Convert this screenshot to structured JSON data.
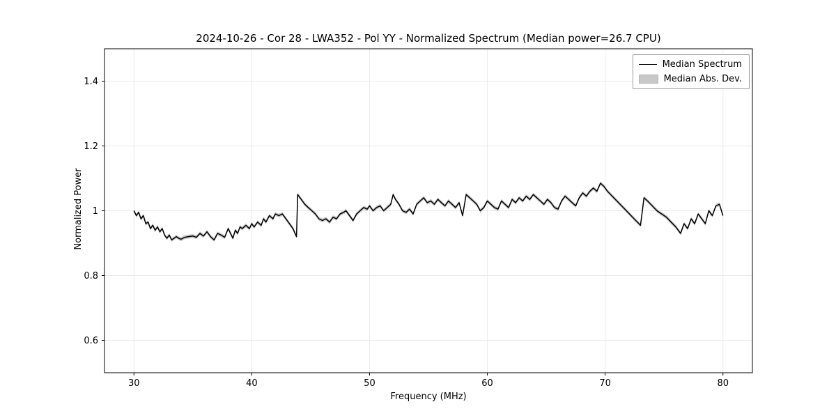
{
  "chart_data": {
    "type": "line",
    "title": "2024-10-26 - Cor 28 - LWA352 - Pol YY - Normalized Spectrum (Median power=26.7 CPU)",
    "xlabel": "Frequency (MHz)",
    "ylabel": "Normalized Power",
    "xlim": [
      27.5,
      82.5
    ],
    "ylim": [
      0.5,
      1.5
    ],
    "xticks": [
      30,
      40,
      50,
      60,
      70,
      80
    ],
    "yticks": [
      0.6,
      0.8,
      1.0,
      1.2,
      1.4
    ],
    "grid": true,
    "line_color": "#000000",
    "band_color": "#c8c8c8",
    "grid_color": "#ebebeb",
    "mad": 0.006,
    "legend": [
      {
        "label": "Median Spectrum",
        "type": "line",
        "color": "#000000"
      },
      {
        "label": "Median Abs. Dev.",
        "type": "patch",
        "color": "#c8c8c8"
      }
    ],
    "series": [
      {
        "name": "Median Spectrum",
        "points": [
          [
            30.0,
            1.0
          ],
          [
            30.2,
            0.985
          ],
          [
            30.4,
            0.995
          ],
          [
            30.6,
            0.975
          ],
          [
            30.8,
            0.985
          ],
          [
            31.0,
            0.96
          ],
          [
            31.2,
            0.965
          ],
          [
            31.4,
            0.945
          ],
          [
            31.6,
            0.955
          ],
          [
            31.8,
            0.94
          ],
          [
            32.0,
            0.95
          ],
          [
            32.2,
            0.935
          ],
          [
            32.4,
            0.945
          ],
          [
            32.6,
            0.925
          ],
          [
            32.8,
            0.915
          ],
          [
            33.0,
            0.925
          ],
          [
            33.2,
            0.91
          ],
          [
            33.4,
            0.915
          ],
          [
            33.6,
            0.92
          ],
          [
            33.8,
            0.915
          ],
          [
            34.0,
            0.912
          ],
          [
            34.3,
            0.918
          ],
          [
            34.6,
            0.92
          ],
          [
            35.0,
            0.922
          ],
          [
            35.3,
            0.918
          ],
          [
            35.6,
            0.93
          ],
          [
            35.9,
            0.922
          ],
          [
            36.2,
            0.935
          ],
          [
            36.5,
            0.92
          ],
          [
            36.8,
            0.91
          ],
          [
            37.1,
            0.93
          ],
          [
            37.4,
            0.925
          ],
          [
            37.7,
            0.918
          ],
          [
            38.0,
            0.945
          ],
          [
            38.2,
            0.93
          ],
          [
            38.4,
            0.915
          ],
          [
            38.6,
            0.94
          ],
          [
            38.8,
            0.93
          ],
          [
            39.0,
            0.95
          ],
          [
            39.2,
            0.945
          ],
          [
            39.5,
            0.955
          ],
          [
            39.8,
            0.945
          ],
          [
            40.0,
            0.96
          ],
          [
            40.2,
            0.95
          ],
          [
            40.5,
            0.965
          ],
          [
            40.8,
            0.955
          ],
          [
            41.0,
            0.975
          ],
          [
            41.2,
            0.965
          ],
          [
            41.5,
            0.985
          ],
          [
            41.8,
            0.975
          ],
          [
            42.0,
            0.99
          ],
          [
            42.3,
            0.985
          ],
          [
            42.6,
            0.99
          ],
          [
            42.9,
            0.975
          ],
          [
            43.2,
            0.96
          ],
          [
            43.5,
            0.945
          ],
          [
            43.8,
            0.92
          ],
          [
            43.9,
            1.05
          ],
          [
            44.2,
            1.035
          ],
          [
            44.5,
            1.02
          ],
          [
            44.8,
            1.01
          ],
          [
            45.1,
            1.0
          ],
          [
            45.4,
            0.99
          ],
          [
            45.7,
            0.975
          ],
          [
            46.0,
            0.97
          ],
          [
            46.3,
            0.975
          ],
          [
            46.6,
            0.965
          ],
          [
            46.9,
            0.98
          ],
          [
            47.2,
            0.975
          ],
          [
            47.5,
            0.99
          ],
          [
            47.8,
            0.995
          ],
          [
            48.0,
            1.0
          ],
          [
            48.3,
            0.985
          ],
          [
            48.6,
            0.97
          ],
          [
            48.9,
            0.99
          ],
          [
            49.2,
            1.0
          ],
          [
            49.5,
            1.01
          ],
          [
            49.8,
            1.005
          ],
          [
            50.0,
            1.015
          ],
          [
            50.3,
            1.0
          ],
          [
            50.6,
            1.01
          ],
          [
            50.9,
            1.015
          ],
          [
            51.2,
            1.0
          ],
          [
            51.5,
            1.01
          ],
          [
            51.8,
            1.02
          ],
          [
            52.0,
            1.05
          ],
          [
            52.2,
            1.035
          ],
          [
            52.5,
            1.02
          ],
          [
            52.8,
            1.0
          ],
          [
            53.1,
            0.995
          ],
          [
            53.4,
            1.005
          ],
          [
            53.7,
            0.99
          ],
          [
            54.0,
            1.02
          ],
          [
            54.3,
            1.03
          ],
          [
            54.6,
            1.04
          ],
          [
            54.9,
            1.025
          ],
          [
            55.2,
            1.03
          ],
          [
            55.5,
            1.02
          ],
          [
            55.8,
            1.035
          ],
          [
            56.1,
            1.025
          ],
          [
            56.4,
            1.015
          ],
          [
            56.7,
            1.03
          ],
          [
            57.0,
            1.02
          ],
          [
            57.3,
            1.01
          ],
          [
            57.6,
            1.025
          ],
          [
            57.9,
            0.985
          ],
          [
            58.2,
            1.05
          ],
          [
            58.5,
            1.04
          ],
          [
            58.8,
            1.03
          ],
          [
            59.1,
            1.02
          ],
          [
            59.4,
            1.0
          ],
          [
            59.7,
            1.01
          ],
          [
            60.0,
            1.03
          ],
          [
            60.3,
            1.02
          ],
          [
            60.6,
            1.01
          ],
          [
            60.9,
            1.005
          ],
          [
            61.2,
            1.03
          ],
          [
            61.5,
            1.02
          ],
          [
            61.8,
            1.01
          ],
          [
            62.1,
            1.035
          ],
          [
            62.4,
            1.025
          ],
          [
            62.7,
            1.04
          ],
          [
            63.0,
            1.03
          ],
          [
            63.3,
            1.045
          ],
          [
            63.6,
            1.035
          ],
          [
            63.9,
            1.05
          ],
          [
            64.2,
            1.04
          ],
          [
            64.5,
            1.03
          ],
          [
            64.8,
            1.02
          ],
          [
            65.1,
            1.035
          ],
          [
            65.4,
            1.025
          ],
          [
            65.7,
            1.01
          ],
          [
            66.0,
            1.005
          ],
          [
            66.3,
            1.03
          ],
          [
            66.6,
            1.045
          ],
          [
            66.9,
            1.035
          ],
          [
            67.2,
            1.025
          ],
          [
            67.5,
            1.015
          ],
          [
            67.8,
            1.04
          ],
          [
            68.1,
            1.055
          ],
          [
            68.4,
            1.045
          ],
          [
            68.7,
            1.06
          ],
          [
            69.0,
            1.07
          ],
          [
            69.3,
            1.06
          ],
          [
            69.6,
            1.085
          ],
          [
            69.9,
            1.075
          ],
          [
            70.2,
            1.06
          ],
          [
            70.6,
            1.045
          ],
          [
            71.0,
            1.03
          ],
          [
            71.4,
            1.015
          ],
          [
            71.8,
            1.0
          ],
          [
            72.2,
            0.985
          ],
          [
            72.6,
            0.97
          ],
          [
            73.0,
            0.955
          ],
          [
            73.3,
            1.04
          ],
          [
            73.6,
            1.03
          ],
          [
            74.0,
            1.015
          ],
          [
            74.4,
            1.0
          ],
          [
            74.8,
            0.99
          ],
          [
            75.2,
            0.98
          ],
          [
            75.6,
            0.965
          ],
          [
            76.0,
            0.95
          ],
          [
            76.4,
            0.93
          ],
          [
            76.7,
            0.96
          ],
          [
            77.0,
            0.945
          ],
          [
            77.3,
            0.975
          ],
          [
            77.6,
            0.96
          ],
          [
            77.9,
            0.99
          ],
          [
            78.2,
            0.975
          ],
          [
            78.5,
            0.96
          ],
          [
            78.8,
            1.0
          ],
          [
            79.1,
            0.985
          ],
          [
            79.4,
            1.015
          ],
          [
            79.7,
            1.02
          ],
          [
            80.0,
            0.985
          ]
        ]
      }
    ]
  }
}
